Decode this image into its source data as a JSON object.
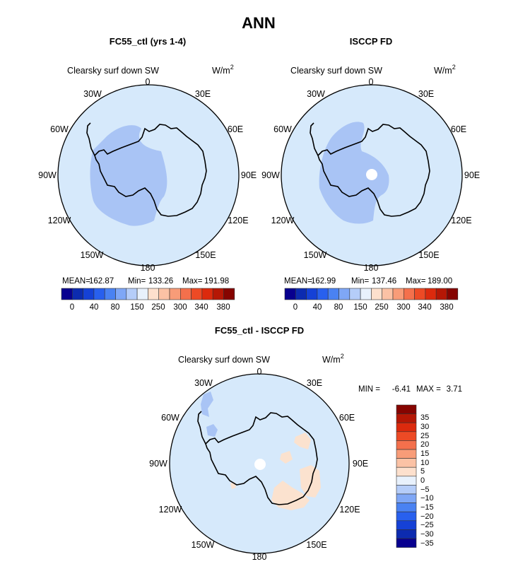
{
  "page_title": "ANN",
  "palette": {
    "ocean": "#d6e9fb",
    "cold_region": "#a9c4f5",
    "warm_region": "#fbe2cf",
    "pole_hole": "#ffffff",
    "coast": "#000000"
  },
  "chart_data": [
    {
      "type": "heatmap",
      "projection": "south-polar-stereographic",
      "title": "FC55_ctl (yrs 1-4)",
      "variable_label": "Clearsky surf down SW",
      "units_label": "W/m",
      "units_exponent": "2",
      "lon_labels": [
        "0",
        "30E",
        "60E",
        "90E",
        "120E",
        "150E",
        "180",
        "150W",
        "120W",
        "90W",
        "60W",
        "30W"
      ],
      "stats": {
        "mean_label": "MEAN=",
        "mean": "162.87",
        "min_label": "Min=",
        "min": "133.26",
        "max_label": "Max=",
        "max": "191.98"
      },
      "colorbar": {
        "orientation": "horizontal",
        "colors": [
          "#08008f",
          "#0c2bb0",
          "#1541d6",
          "#2860ee",
          "#4a82f2",
          "#7fa7f6",
          "#b5cdf9",
          "#e8f1fc",
          "#fde0cd",
          "#fbc2a5",
          "#f89c78",
          "#f4704c",
          "#ed4a25",
          "#dc2a0d",
          "#b51705",
          "#860400"
        ],
        "tick_labels": [
          "0",
          "40",
          "80",
          "150",
          "250",
          "300",
          "340",
          "380"
        ]
      }
    },
    {
      "type": "heatmap",
      "projection": "south-polar-stereographic",
      "title": "ISCCP FD",
      "variable_label": "Clearsky surf down SW",
      "units_label": "W/m",
      "units_exponent": "2",
      "lon_labels": [
        "0",
        "30E",
        "60E",
        "90E",
        "120E",
        "150E",
        "180",
        "150W",
        "120W",
        "90W",
        "60W",
        "30W"
      ],
      "stats": {
        "mean_label": "MEAN=",
        "mean": "162.99",
        "min_label": "Min=",
        "min": "137.46",
        "max_label": "Max=",
        "max": "189.00"
      },
      "colorbar": {
        "orientation": "horizontal",
        "colors": [
          "#08008f",
          "#0c2bb0",
          "#1541d6",
          "#2860ee",
          "#4a82f2",
          "#7fa7f6",
          "#b5cdf9",
          "#e8f1fc",
          "#fde0cd",
          "#fbc2a5",
          "#f89c78",
          "#f4704c",
          "#ed4a25",
          "#dc2a0d",
          "#b51705",
          "#860400"
        ],
        "tick_labels": [
          "0",
          "40",
          "80",
          "150",
          "250",
          "300",
          "340",
          "380"
        ]
      }
    },
    {
      "type": "heatmap",
      "projection": "south-polar-stereographic",
      "title": "FC55_ctl - ISCCP FD",
      "variable_label": "Clearsky surf down SW",
      "units_label": "W/m",
      "units_exponent": "2",
      "lon_labels": [
        "0",
        "30E",
        "60E",
        "90E",
        "120E",
        "150E",
        "180",
        "150W",
        "120W",
        "90W",
        "60W",
        "30W"
      ],
      "stats": {
        "min_label": "MIN =",
        "min": "-6.41",
        "max_label": "MAX =",
        "max": "3.71"
      },
      "colorbar": {
        "orientation": "vertical",
        "colors": [
          "#860400",
          "#b51705",
          "#dc2a0d",
          "#ed4a25",
          "#f4704c",
          "#f89c78",
          "#fbc2a5",
          "#fde0cd",
          "#e8f1fc",
          "#b5cdf9",
          "#7fa7f6",
          "#4a82f2",
          "#2860ee",
          "#1541d6",
          "#0c2bb0",
          "#08008f"
        ],
        "tick_labels": [
          "35",
          "30",
          "25",
          "20",
          "15",
          "10",
          "5",
          "0",
          "−5",
          "−10",
          "−15",
          "−20",
          "−25",
          "−30",
          "−35"
        ]
      }
    }
  ]
}
